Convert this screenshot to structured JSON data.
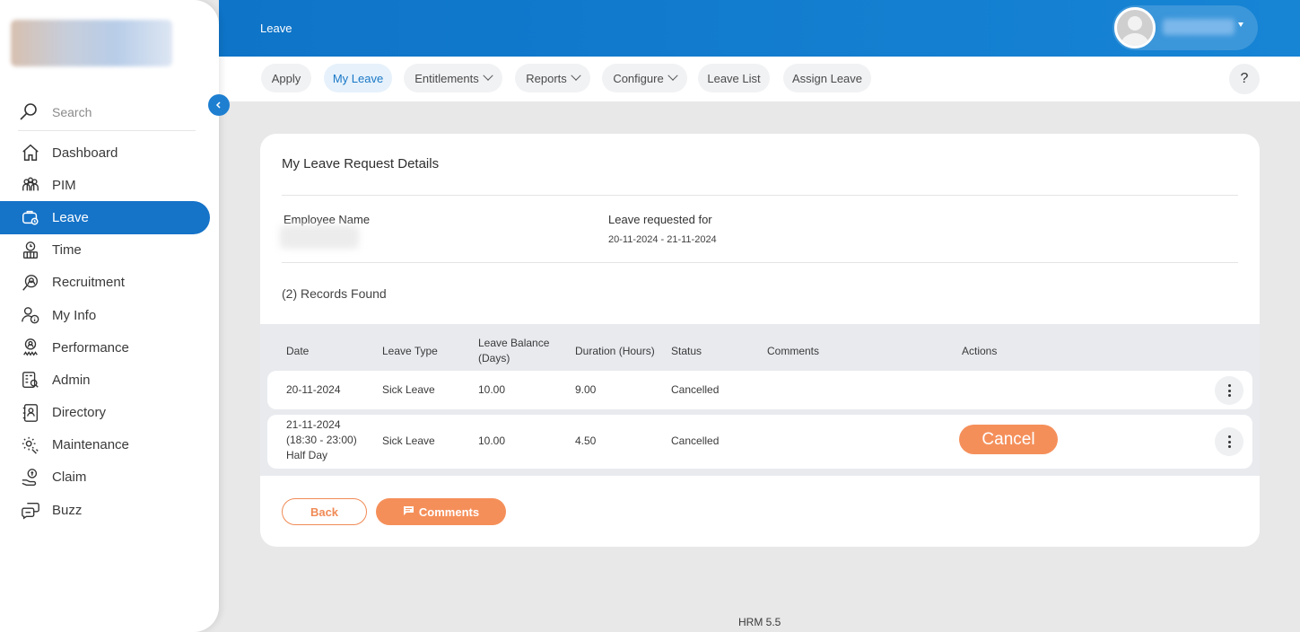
{
  "sidebar": {
    "search_placeholder": "Search",
    "items": [
      {
        "label": "Dashboard",
        "icon": "home-icon"
      },
      {
        "label": "PIM",
        "icon": "people-icon"
      },
      {
        "label": "Leave",
        "icon": "leave-briefcase-icon",
        "active": true
      },
      {
        "label": "Time",
        "icon": "time-icon"
      },
      {
        "label": "Recruitment",
        "icon": "recruitment-icon"
      },
      {
        "label": "My Info",
        "icon": "myinfo-icon"
      },
      {
        "label": "Performance",
        "icon": "performance-icon"
      },
      {
        "label": "Admin",
        "icon": "admin-icon"
      },
      {
        "label": "Directory",
        "icon": "directory-icon"
      },
      {
        "label": "Maintenance",
        "icon": "maintenance-icon"
      },
      {
        "label": "Claim",
        "icon": "claim-icon"
      },
      {
        "label": "Buzz",
        "icon": "buzz-icon"
      }
    ]
  },
  "topbar": {
    "title": "Leave"
  },
  "subnav": {
    "tabs": [
      {
        "label": "Apply"
      },
      {
        "label": "My Leave",
        "active": true
      },
      {
        "label": "Entitlements",
        "dropdown": true
      },
      {
        "label": "Reports",
        "dropdown": true
      },
      {
        "label": "Configure",
        "dropdown": true
      },
      {
        "label": "Leave List"
      },
      {
        "label": "Assign Leave"
      }
    ],
    "help": "?"
  },
  "card": {
    "title": "My Leave Request Details",
    "employee_label": "Employee Name",
    "requested_label": "Leave requested for",
    "requested_value": "20-11-2024 - 21-11-2024",
    "records": "(2) Records Found"
  },
  "table": {
    "headers": {
      "date": "Date",
      "type": "Leave Type",
      "balance_1": "Leave Balance",
      "balance_2": "(Days)",
      "duration": "Duration (Hours)",
      "status": "Status",
      "comments": "Comments",
      "actions": "Actions"
    },
    "rows": [
      {
        "date": "20-11-2024",
        "type": "Sick Leave",
        "balance": "10.00",
        "duration": "9.00",
        "status": "Cancelled"
      },
      {
        "date": "21-11-2024",
        "date_2": "(18:30 - 23:00)",
        "date_3": "Half Day",
        "type": "Sick Leave",
        "balance": "10.00",
        "duration": "4.50",
        "status": "Cancelled",
        "action": "Cancel"
      }
    ]
  },
  "buttons": {
    "back": "Back",
    "comments": "Comments"
  },
  "footer": "HRM 5.5",
  "colors": {
    "primary": "#1573c8",
    "accent": "#f58f5a"
  }
}
